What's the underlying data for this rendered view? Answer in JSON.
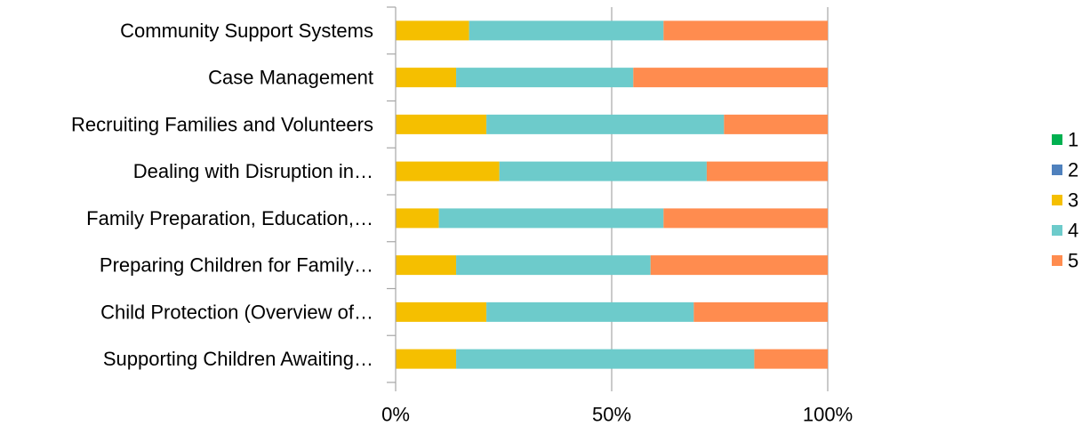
{
  "chart_data": {
    "type": "bar",
    "orientation": "horizontal",
    "stacked": "percent",
    "categories": [
      "Community Support Systems",
      "Case Management",
      "Recruiting Families and Volunteers",
      "Dealing with Disruption in…",
      "Family Preparation, Education,…",
      "Preparing Children for Family…",
      "Child Protection (Overview of…",
      "Supporting Children Awaiting…"
    ],
    "series": [
      {
        "name": "1",
        "color": "#00b050",
        "values": [
          0,
          0,
          0,
          0,
          0,
          0,
          0,
          0
        ]
      },
      {
        "name": "2",
        "color": "#4f81bd",
        "values": [
          0,
          0,
          0,
          0,
          0,
          0,
          0,
          0
        ]
      },
      {
        "name": "3",
        "color": "#f5bf00",
        "values": [
          17,
          14,
          21,
          24,
          10,
          14,
          21,
          14
        ]
      },
      {
        "name": "4",
        "color": "#6dcbcb",
        "values": [
          45,
          41,
          55,
          48,
          52,
          45,
          48,
          69
        ]
      },
      {
        "name": "5",
        "color": "#ff8c4f",
        "values": [
          38,
          45,
          24,
          28,
          38,
          41,
          31,
          17
        ]
      }
    ],
    "x_ticks": [
      "0%",
      "50%",
      "100%"
    ],
    "xlim": [
      0,
      100
    ],
    "grid": "vertical",
    "legend": "right"
  }
}
